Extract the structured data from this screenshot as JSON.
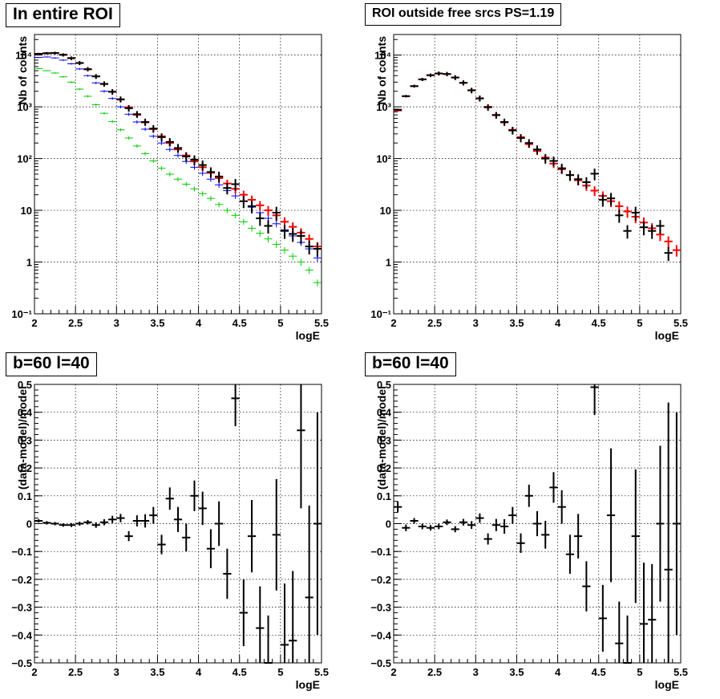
{
  "chart_data": [
    {
      "type": "scatter",
      "title": "In entire ROI",
      "xlabel": "logE",
      "ylabel": "Nb of counts",
      "xlim": [
        2,
        5.5
      ],
      "ylim": [
        0.1,
        25000
      ],
      "yscale": "log",
      "grid": true,
      "xticks": [
        "2",
        "2.5",
        "3",
        "3.5",
        "4",
        "4.5",
        "5",
        "5.5"
      ],
      "yticks": [
        {
          "v": 0.1,
          "l": "10⁻¹"
        },
        {
          "v": 1,
          "l": "1"
        },
        {
          "v": 10,
          "l": "10"
        },
        {
          "v": 100,
          "l": "10²"
        },
        {
          "v": 1000,
          "l": "10³"
        },
        {
          "v": 10000,
          "l": "10⁴"
        }
      ],
      "series": [
        {
          "color": "#00cc00",
          "x": [
            2.05,
            2.15,
            2.25,
            2.35,
            2.45,
            2.55,
            2.65,
            2.75,
            2.85,
            2.95,
            3.05,
            3.15,
            3.25,
            3.35,
            3.45,
            3.55,
            3.65,
            3.75,
            3.85,
            3.95,
            4.05,
            4.15,
            4.25,
            4.35,
            4.45,
            4.55,
            4.65,
            4.75,
            4.85,
            4.95,
            5.05,
            5.15,
            5.25,
            5.35,
            5.45
          ],
          "y": [
            5500,
            5000,
            4500,
            3800,
            3000,
            2200,
            1600,
            1100,
            750,
            520,
            360,
            250,
            175,
            125,
            90,
            65,
            50,
            40,
            32,
            26,
            21,
            17,
            13,
            10,
            8,
            6,
            4.5,
            3.6,
            2.8,
            2.2,
            1.7,
            1.3,
            1.0,
            0.7,
            0.4
          ],
          "yerr_frac": 0.15
        },
        {
          "color": "#0000ff",
          "x": [
            2.05,
            2.15,
            2.25,
            2.35,
            2.45,
            2.55,
            2.65,
            2.75,
            2.85,
            2.95,
            3.05,
            3.15,
            3.25,
            3.35,
            3.45,
            3.55,
            3.65,
            3.75,
            3.85,
            3.95,
            4.05,
            4.15,
            4.25,
            4.35,
            4.45,
            4.55,
            4.65,
            4.75,
            4.85,
            4.95,
            5.05,
            5.15,
            5.25,
            5.35,
            5.45
          ],
          "y": [
            9000,
            9200,
            8800,
            8000,
            6800,
            5400,
            4000,
            2900,
            2000,
            1450,
            1000,
            720,
            510,
            370,
            270,
            200,
            150,
            115,
            88,
            68,
            52,
            40,
            31,
            24,
            19,
            15,
            11.5,
            9,
            7,
            5.5,
            4.2,
            3.2,
            2.4,
            1.8,
            1.2
          ],
          "yerr_frac": 0.15
        },
        {
          "color": "#ff0000",
          "x": [
            2.05,
            2.15,
            2.25,
            2.35,
            2.45,
            2.55,
            2.65,
            2.75,
            2.85,
            2.95,
            3.05,
            3.15,
            3.25,
            3.35,
            3.45,
            3.55,
            3.65,
            3.75,
            3.85,
            3.95,
            4.05,
            4.15,
            4.25,
            4.35,
            4.45,
            4.55,
            4.65,
            4.75,
            4.85,
            4.95,
            5.05,
            5.15,
            5.25,
            5.35,
            5.45
          ],
          "y": [
            10500,
            10800,
            11000,
            10200,
            8800,
            7000,
            5300,
            3900,
            2750,
            1950,
            1380,
            980,
            700,
            500,
            370,
            270,
            200,
            150,
            115,
            88,
            68,
            53,
            42,
            33,
            26,
            20,
            16,
            12.5,
            10,
            8,
            6,
            4.8,
            3.7,
            2.8,
            2.0
          ],
          "yerr_frac": 0.22
        },
        {
          "color": "#000000",
          "x": [
            2.05,
            2.15,
            2.25,
            2.35,
            2.45,
            2.55,
            2.65,
            2.75,
            2.85,
            2.95,
            3.05,
            3.15,
            3.25,
            3.35,
            3.45,
            3.55,
            3.65,
            3.75,
            3.85,
            3.95,
            4.05,
            4.15,
            4.25,
            4.35,
            4.45,
            4.55,
            4.65,
            4.75,
            4.85,
            4.95,
            5.05,
            5.15,
            5.25,
            5.35,
            5.45
          ],
          "y": [
            10600,
            10900,
            10950,
            10100,
            8700,
            7050,
            5350,
            3870,
            2780,
            1960,
            1400,
            940,
            720,
            510,
            380,
            260,
            210,
            160,
            110,
            95,
            75,
            55,
            45,
            27,
            32,
            15,
            12,
            7,
            5,
            9,
            4,
            3.5,
            3.2,
            2.0,
            1.8
          ],
          "yerr_frac": 0.3
        }
      ]
    },
    {
      "type": "scatter",
      "title": "ROI outside free srcs PS=1.19",
      "xlabel": "logE",
      "ylabel": "Nb of counts",
      "xlim": [
        2,
        5.5
      ],
      "ylim": [
        0.1,
        25000
      ],
      "yscale": "log",
      "grid": true,
      "xticks": [
        "2",
        "2.5",
        "3",
        "3.5",
        "4",
        "4.5",
        "5",
        "5.5"
      ],
      "yticks": [
        {
          "v": 0.1,
          "l": "10⁻¹"
        },
        {
          "v": 1,
          "l": "1"
        },
        {
          "v": 10,
          "l": "10"
        },
        {
          "v": 100,
          "l": "10²"
        },
        {
          "v": 1000,
          "l": "10³"
        },
        {
          "v": 10000,
          "l": "10⁴"
        }
      ],
      "series": [
        {
          "color": "#ff0000",
          "x": [
            2.05,
            2.15,
            2.25,
            2.35,
            2.45,
            2.55,
            2.65,
            2.75,
            2.85,
            2.95,
            3.05,
            3.15,
            3.25,
            3.35,
            3.45,
            3.55,
            3.65,
            3.75,
            3.85,
            3.95,
            4.05,
            4.15,
            4.25,
            4.35,
            4.45,
            4.55,
            4.65,
            4.75,
            4.85,
            4.95,
            5.05,
            5.15,
            5.25,
            5.35,
            5.45
          ],
          "y": [
            850,
            1600,
            2500,
            3400,
            4100,
            4400,
            4300,
            3700,
            2900,
            2100,
            1450,
            1000,
            700,
            500,
            360,
            260,
            190,
            140,
            105,
            80,
            62,
            48,
            38,
            30,
            24,
            19,
            15,
            12,
            9.5,
            7.5,
            5.8,
            4.5,
            3.4,
            2.5,
            1.7
          ],
          "yerr_frac": 0.25
        },
        {
          "color": "#000000",
          "x": [
            2.05,
            2.15,
            2.25,
            2.35,
            2.45,
            2.55,
            2.65,
            2.75,
            2.85,
            2.95,
            3.05,
            3.15,
            3.25,
            3.35,
            3.45,
            3.55,
            3.65,
            3.75,
            3.85,
            3.95,
            4.05,
            4.15,
            4.25,
            4.35,
            4.45,
            4.55,
            4.65,
            4.75,
            4.85,
            4.95,
            5.05,
            5.15,
            5.25,
            5.35,
            5.45
          ],
          "y": [
            880,
            1610,
            2520,
            3390,
            4080,
            4420,
            4310,
            3680,
            2920,
            2080,
            1460,
            980,
            690,
            510,
            350,
            250,
            200,
            150,
            100,
            90,
            65,
            48,
            40,
            35,
            51,
            16,
            17,
            8,
            4,
            9,
            4.7,
            4,
            5,
            1.5,
            0
          ],
          "yerr_frac": 0.3
        }
      ]
    },
    {
      "type": "scatter",
      "title": "b=60 l=40",
      "xlabel": "logE",
      "ylabel": "(data-model)/model",
      "xlim": [
        2,
        5.5
      ],
      "ylim": [
        -0.5,
        0.5
      ],
      "grid": true,
      "xticks": [
        "2",
        "2.5",
        "3",
        "3.5",
        "4",
        "4.5",
        "5",
        "5.5"
      ],
      "yticks": [
        {
          "v": -0.5,
          "l": "−0.5"
        },
        {
          "v": -0.4,
          "l": "−0.4"
        },
        {
          "v": -0.3,
          "l": "−0.3"
        },
        {
          "v": -0.2,
          "l": "−0.2"
        },
        {
          "v": -0.1,
          "l": "−0.1"
        },
        {
          "v": 0,
          "l": "0"
        },
        {
          "v": 0.1,
          "l": "0.1"
        },
        {
          "v": 0.2,
          "l": "0.2"
        },
        {
          "v": 0.3,
          "l": "0.3"
        },
        {
          "v": 0.4,
          "l": "0.4"
        },
        {
          "v": 0.5,
          "l": "0.5"
        }
      ],
      "series": [
        {
          "color": "#000000",
          "x": [
            2.05,
            2.15,
            2.25,
            2.35,
            2.45,
            2.55,
            2.65,
            2.75,
            2.85,
            2.95,
            3.05,
            3.15,
            3.25,
            3.35,
            3.45,
            3.55,
            3.65,
            3.75,
            3.85,
            3.95,
            4.05,
            4.15,
            4.25,
            4.35,
            4.45,
            4.55,
            4.65,
            4.75,
            4.85,
            4.95,
            5.05,
            5.15,
            5.25,
            5.35,
            5.45
          ],
          "y": [
            0.01,
            0.003,
            0.0,
            -0.005,
            -0.005,
            0.0,
            0.005,
            -0.005,
            0.005,
            0.015,
            0.02,
            -0.045,
            0.01,
            0.01,
            0.03,
            -0.075,
            0.09,
            0.015,
            -0.05,
            0.1,
            0.055,
            -0.09,
            0.0,
            -0.18,
            0.45,
            -0.32,
            -0.045,
            -0.375,
            -0.5,
            -0.04,
            -0.435,
            -0.42,
            0.335,
            -0.265,
            0.0
          ],
          "yerr": [
            0.006,
            0.006,
            0.006,
            0.006,
            0.007,
            0.007,
            0.008,
            0.01,
            0.011,
            0.013,
            0.015,
            0.018,
            0.02,
            0.024,
            0.03,
            0.035,
            0.04,
            0.045,
            0.05,
            0.055,
            0.06,
            0.07,
            0.08,
            0.09,
            0.1,
            0.12,
            0.13,
            0.15,
            0.17,
            0.2,
            0.22,
            0.25,
            0.28,
            0.33,
            0.4
          ]
        }
      ]
    },
    {
      "type": "scatter",
      "title": "b=60 l=40",
      "xlabel": "logE",
      "ylabel": "(data-model)/model",
      "xlim": [
        2,
        5.5
      ],
      "ylim": [
        -0.5,
        0.5
      ],
      "grid": true,
      "xticks": [
        "2",
        "2.5",
        "3",
        "3.5",
        "4",
        "4.5",
        "5",
        "5.5"
      ],
      "yticks": [
        {
          "v": -0.5,
          "l": "−0.5"
        },
        {
          "v": -0.4,
          "l": "−0.4"
        },
        {
          "v": -0.3,
          "l": "−0.3"
        },
        {
          "v": -0.2,
          "l": "−0.2"
        },
        {
          "v": -0.1,
          "l": "−0.1"
        },
        {
          "v": 0,
          "l": "0"
        },
        {
          "v": 0.1,
          "l": "0.1"
        },
        {
          "v": 0.2,
          "l": "0.2"
        },
        {
          "v": 0.3,
          "l": "0.3"
        },
        {
          "v": 0.4,
          "l": "0.4"
        },
        {
          "v": 0.5,
          "l": "0.5"
        }
      ],
      "series": [
        {
          "color": "#000000",
          "x": [
            2.05,
            2.15,
            2.25,
            2.35,
            2.45,
            2.55,
            2.65,
            2.75,
            2.85,
            2.95,
            3.05,
            3.15,
            3.25,
            3.35,
            3.45,
            3.55,
            3.65,
            3.75,
            3.85,
            3.95,
            4.05,
            4.15,
            4.25,
            4.35,
            4.45,
            4.55,
            4.65,
            4.75,
            4.85,
            4.95,
            5.05,
            5.15,
            5.25,
            5.35,
            5.45
          ],
          "y": [
            0.06,
            -0.015,
            0.01,
            -0.01,
            -0.015,
            -0.01,
            0.005,
            -0.02,
            0.005,
            -0.005,
            0.02,
            -0.055,
            -0.005,
            -0.01,
            0.03,
            -0.07,
            0.1,
            0.0,
            -0.04,
            0.13,
            0.06,
            -0.11,
            -0.045,
            -0.225,
            0.49,
            -0.34,
            0.03,
            -0.43,
            -0.5,
            -0.045,
            -0.36,
            -0.345,
            0.0,
            -0.165,
            0.0
          ],
          "yerr": [
            0.02,
            0.012,
            0.01,
            0.01,
            0.01,
            0.01,
            0.01,
            0.011,
            0.012,
            0.014,
            0.017,
            0.02,
            0.022,
            0.026,
            0.03,
            0.035,
            0.04,
            0.045,
            0.05,
            0.055,
            0.06,
            0.07,
            0.08,
            0.09,
            0.1,
            0.12,
            0.24,
            0.15,
            0.17,
            0.24,
            0.22,
            0.2,
            0.28,
            0.6,
            0.4
          ]
        }
      ]
    }
  ]
}
